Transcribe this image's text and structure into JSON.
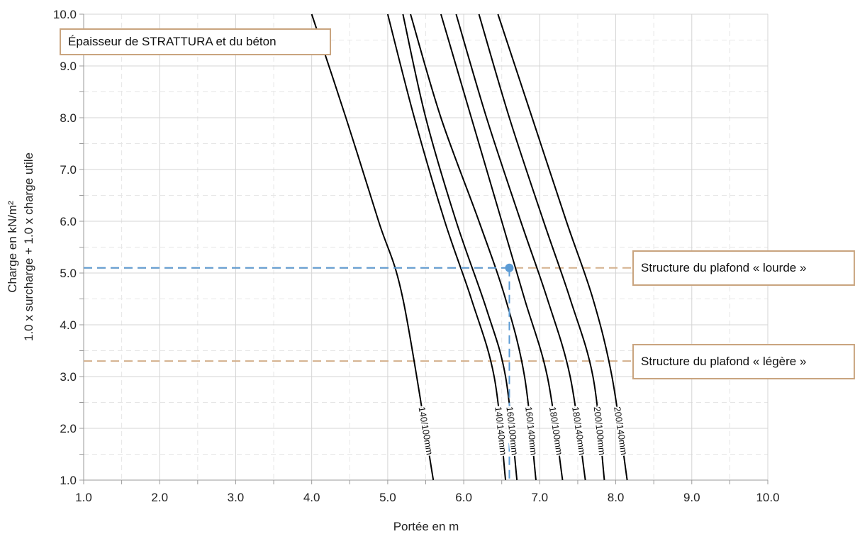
{
  "chart_data": {
    "type": "line",
    "title": "Épaisseur de STRATTURA et du béton",
    "xlabel": "Portée en m",
    "ylabel_lines": [
      "Charge en kN/m²",
      "1.0 x surcharge + 1.0 x charge utile"
    ],
    "xlim": [
      1.0,
      10.0
    ],
    "ylim": [
      1.0,
      10.0
    ],
    "x_ticks": [
      "1.0",
      "2.0",
      "3.0",
      "4.0",
      "5.0",
      "6.0",
      "7.0",
      "8.0",
      "9.0",
      "10.0"
    ],
    "y_ticks": [
      "1.0",
      "2.0",
      "3.0",
      "4.0",
      "5.0",
      "6.0",
      "7.0",
      "8.0",
      "9.0",
      "10.0"
    ],
    "grid": true,
    "series": [
      {
        "name": "140/100mm",
        "points": [
          [
            4.0,
            10.0
          ],
          [
            4.45,
            8.0
          ],
          [
            4.88,
            6.0
          ],
          [
            5.2,
            4.5
          ],
          [
            5.6,
            1.0
          ]
        ]
      },
      {
        "name": "140/140mm",
        "points": [
          [
            5.0,
            10.0
          ],
          [
            5.35,
            8.0
          ],
          [
            5.75,
            6.0
          ],
          [
            6.1,
            4.5
          ],
          [
            6.4,
            3.0
          ],
          [
            6.55,
            1.0
          ]
        ]
      },
      {
        "name": "160/100mm",
        "points": [
          [
            5.2,
            10.0
          ],
          [
            5.5,
            8.0
          ],
          [
            5.9,
            6.0
          ],
          [
            6.3,
            4.3
          ],
          [
            6.55,
            3.0
          ],
          [
            6.7,
            1.0
          ]
        ]
      },
      {
        "name": "160/140mm",
        "points": [
          [
            5.3,
            10.0
          ],
          [
            5.7,
            8.0
          ],
          [
            6.2,
            6.0
          ],
          [
            6.55,
            4.5
          ],
          [
            6.8,
            3.0
          ],
          [
            6.95,
            1.0
          ]
        ]
      },
      {
        "name": "180/100mm",
        "points": [
          [
            5.7,
            10.0
          ],
          [
            6.1,
            8.0
          ],
          [
            6.5,
            6.0
          ],
          [
            6.8,
            4.5
          ],
          [
            7.1,
            3.0
          ],
          [
            7.3,
            1.0
          ]
        ]
      },
      {
        "name": "180/140mm",
        "points": [
          [
            5.9,
            10.0
          ],
          [
            6.3,
            8.0
          ],
          [
            6.75,
            6.0
          ],
          [
            7.1,
            4.5
          ],
          [
            7.4,
            3.0
          ],
          [
            7.6,
            1.0
          ]
        ]
      },
      {
        "name": "200/100mm",
        "points": [
          [
            6.2,
            10.0
          ],
          [
            6.6,
            8.0
          ],
          [
            7.05,
            6.0
          ],
          [
            7.4,
            4.5
          ],
          [
            7.7,
            3.0
          ],
          [
            7.85,
            1.0
          ]
        ]
      },
      {
        "name": "200/140mm",
        "points": [
          [
            6.45,
            10.0
          ],
          [
            6.9,
            8.0
          ],
          [
            7.35,
            6.0
          ],
          [
            7.7,
            4.5
          ],
          [
            7.95,
            3.0
          ],
          [
            8.15,
            1.0
          ]
        ]
      }
    ],
    "reference_lines": [
      {
        "label": "Structure du plafond « lourde »",
        "y": 5.1,
        "color": "#d4b08c"
      },
      {
        "label": "Structure du plafond « légère »",
        "y": 3.3,
        "color": "#d4b08c"
      }
    ],
    "example": {
      "x": 6.6,
      "y": 5.1,
      "color": "#5b9bd5"
    }
  }
}
